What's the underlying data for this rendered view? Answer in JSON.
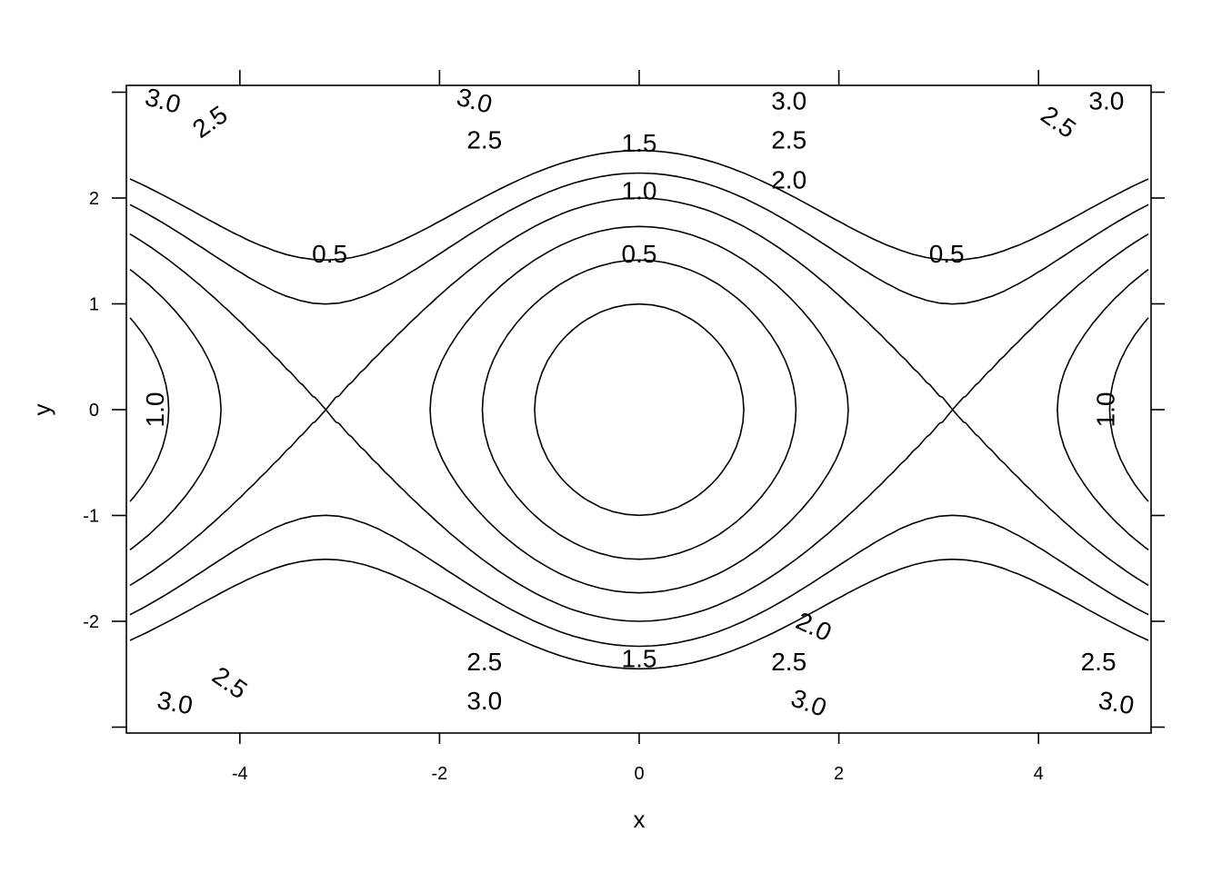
{
  "chart_data": {
    "type": "contour",
    "xlabel": "x",
    "ylabel": "y",
    "xlim": [
      -5.1,
      5.1
    ],
    "ylim": [
      -3.05,
      3.05
    ],
    "x_ticks": [
      -4,
      -2,
      0,
      2,
      4
    ],
    "y_ticks": [
      -2,
      -1,
      0,
      1,
      2
    ],
    "x_tick_labels": [
      "-4",
      "-2",
      "0",
      "2",
      "4"
    ],
    "y_tick_labels": [
      "-2",
      "-1",
      "0",
      "1",
      "2"
    ],
    "levels": [
      0.5,
      1.0,
      1.5,
      2.0,
      2.5,
      3.0
    ],
    "level_labels": [
      "0.5",
      "1.0",
      "1.5",
      "2.0",
      "2.5",
      "3.0"
    ],
    "grid": false,
    "labels": [
      {
        "text": "3.0",
        "x": -4.77,
        "y": 2.92,
        "angle": 15
      },
      {
        "text": "2.5",
        "x": -4.3,
        "y": 2.72,
        "angle": -35
      },
      {
        "text": "3.0",
        "x": -1.65,
        "y": 2.92,
        "angle": 15
      },
      {
        "text": "2.5",
        "x": -1.55,
        "y": 2.55,
        "angle": 0
      },
      {
        "text": "1.5",
        "x": 0.0,
        "y": 2.52,
        "angle": 0
      },
      {
        "text": "1.0",
        "x": 0.0,
        "y": 2.07,
        "angle": 0
      },
      {
        "text": "3.0",
        "x": 1.5,
        "y": 2.92,
        "angle": 0
      },
      {
        "text": "2.5",
        "x": 1.5,
        "y": 2.55,
        "angle": 0
      },
      {
        "text": "2.0",
        "x": 1.5,
        "y": 2.17,
        "angle": 0
      },
      {
        "text": "3.0",
        "x": 4.68,
        "y": 2.92,
        "angle": 0
      },
      {
        "text": "2.5",
        "x": 4.2,
        "y": 2.72,
        "angle": 35
      },
      {
        "text": "0.5",
        "x": -3.1,
        "y": 1.47,
        "angle": 0
      },
      {
        "text": "0.5",
        "x": 0.0,
        "y": 1.47,
        "angle": 0
      },
      {
        "text": "0.5",
        "x": 3.08,
        "y": 1.47,
        "angle": 0
      },
      {
        "text": "1.0",
        "x": -4.85,
        "y": 0.0,
        "angle": -90
      },
      {
        "text": "1.0",
        "x": 4.67,
        "y": 0.0,
        "angle": -90
      },
      {
        "text": "2.0",
        "x": 1.75,
        "y": -2.05,
        "angle": 25
      },
      {
        "text": "2.5",
        "x": -4.1,
        "y": -2.58,
        "angle": 35
      },
      {
        "text": "2.5",
        "x": -1.55,
        "y": -2.38,
        "angle": 0
      },
      {
        "text": "1.5",
        "x": 0.0,
        "y": -2.35,
        "angle": 0
      },
      {
        "text": "2.5",
        "x": 1.5,
        "y": -2.38,
        "angle": 0
      },
      {
        "text": "2.5",
        "x": 4.6,
        "y": -2.38,
        "angle": 0
      },
      {
        "text": "3.0",
        "x": -4.65,
        "y": -2.77,
        "angle": 10
      },
      {
        "text": "3.0",
        "x": -1.55,
        "y": -2.75,
        "angle": 0
      },
      {
        "text": "3.0",
        "x": 1.7,
        "y": -2.77,
        "angle": 20
      },
      {
        "text": "3.0",
        "x": 4.78,
        "y": -2.77,
        "angle": 10
      }
    ]
  }
}
